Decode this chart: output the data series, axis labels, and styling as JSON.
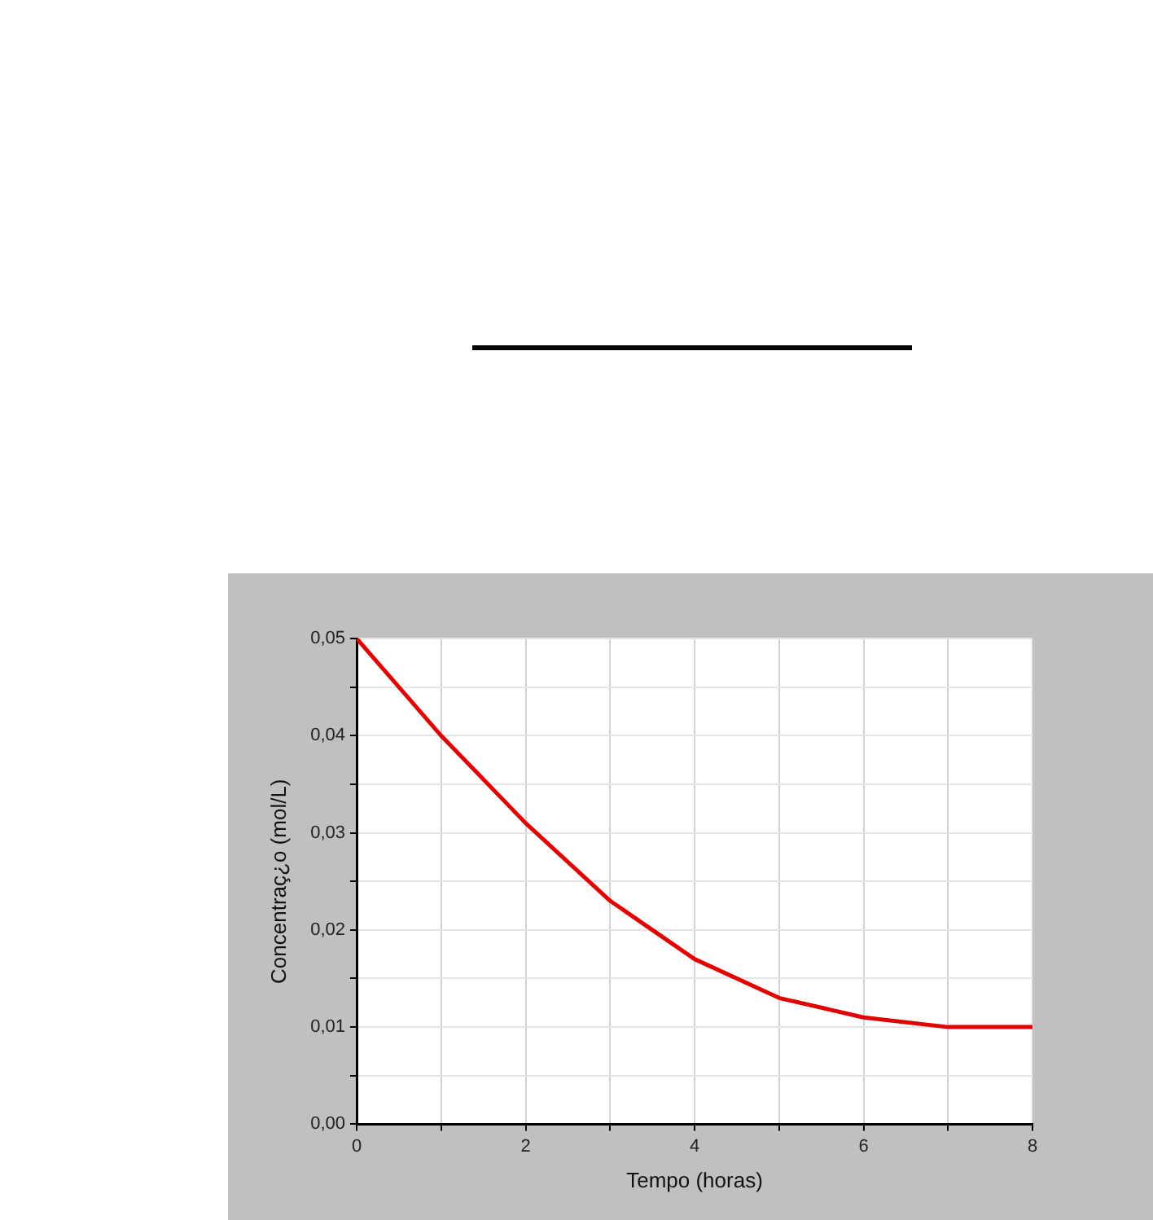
{
  "chart_data": {
    "type": "line",
    "xlabel": "Tempo (horas)",
    "ylabel": "Concentraç¿o (mol/L)",
    "x": [
      0,
      1,
      2,
      3,
      4,
      5,
      6,
      7,
      8
    ],
    "series": [
      {
        "color": "#e00000",
        "values": [
          0.05,
          0.04,
          0.031,
          0.023,
          0.017,
          0.013,
          0.011,
          0.01,
          0.01
        ]
      }
    ],
    "xlim": [
      0,
      8
    ],
    "ylim": [
      0,
      0.05
    ],
    "xticks": [
      0,
      {
        "value": 1,
        "label": null
      },
      2,
      {
        "value": 3,
        "label": null
      },
      4,
      {
        "value": 5,
        "label": null
      },
      6,
      {
        "value": 7,
        "label": null
      },
      8
    ],
    "yticks": [
      {
        "value": 0,
        "label": "0,00"
      },
      {
        "value": 0.005,
        "label": null
      },
      {
        "value": 0.01,
        "label": "0,01"
      },
      {
        "value": 0.015,
        "label": null
      },
      {
        "value": 0.02,
        "label": "0,02"
      },
      {
        "value": 0.025,
        "label": null
      },
      {
        "value": 0.03,
        "label": "0,03"
      },
      {
        "value": 0.035,
        "label": null
      },
      {
        "value": 0.04,
        "label": "0,04"
      },
      {
        "value": 0.045,
        "label": null
      },
      {
        "value": 0.05,
        "label": "0,05"
      }
    ],
    "grid": true,
    "legend": false,
    "marker": "none",
    "line_style": "solid"
  }
}
